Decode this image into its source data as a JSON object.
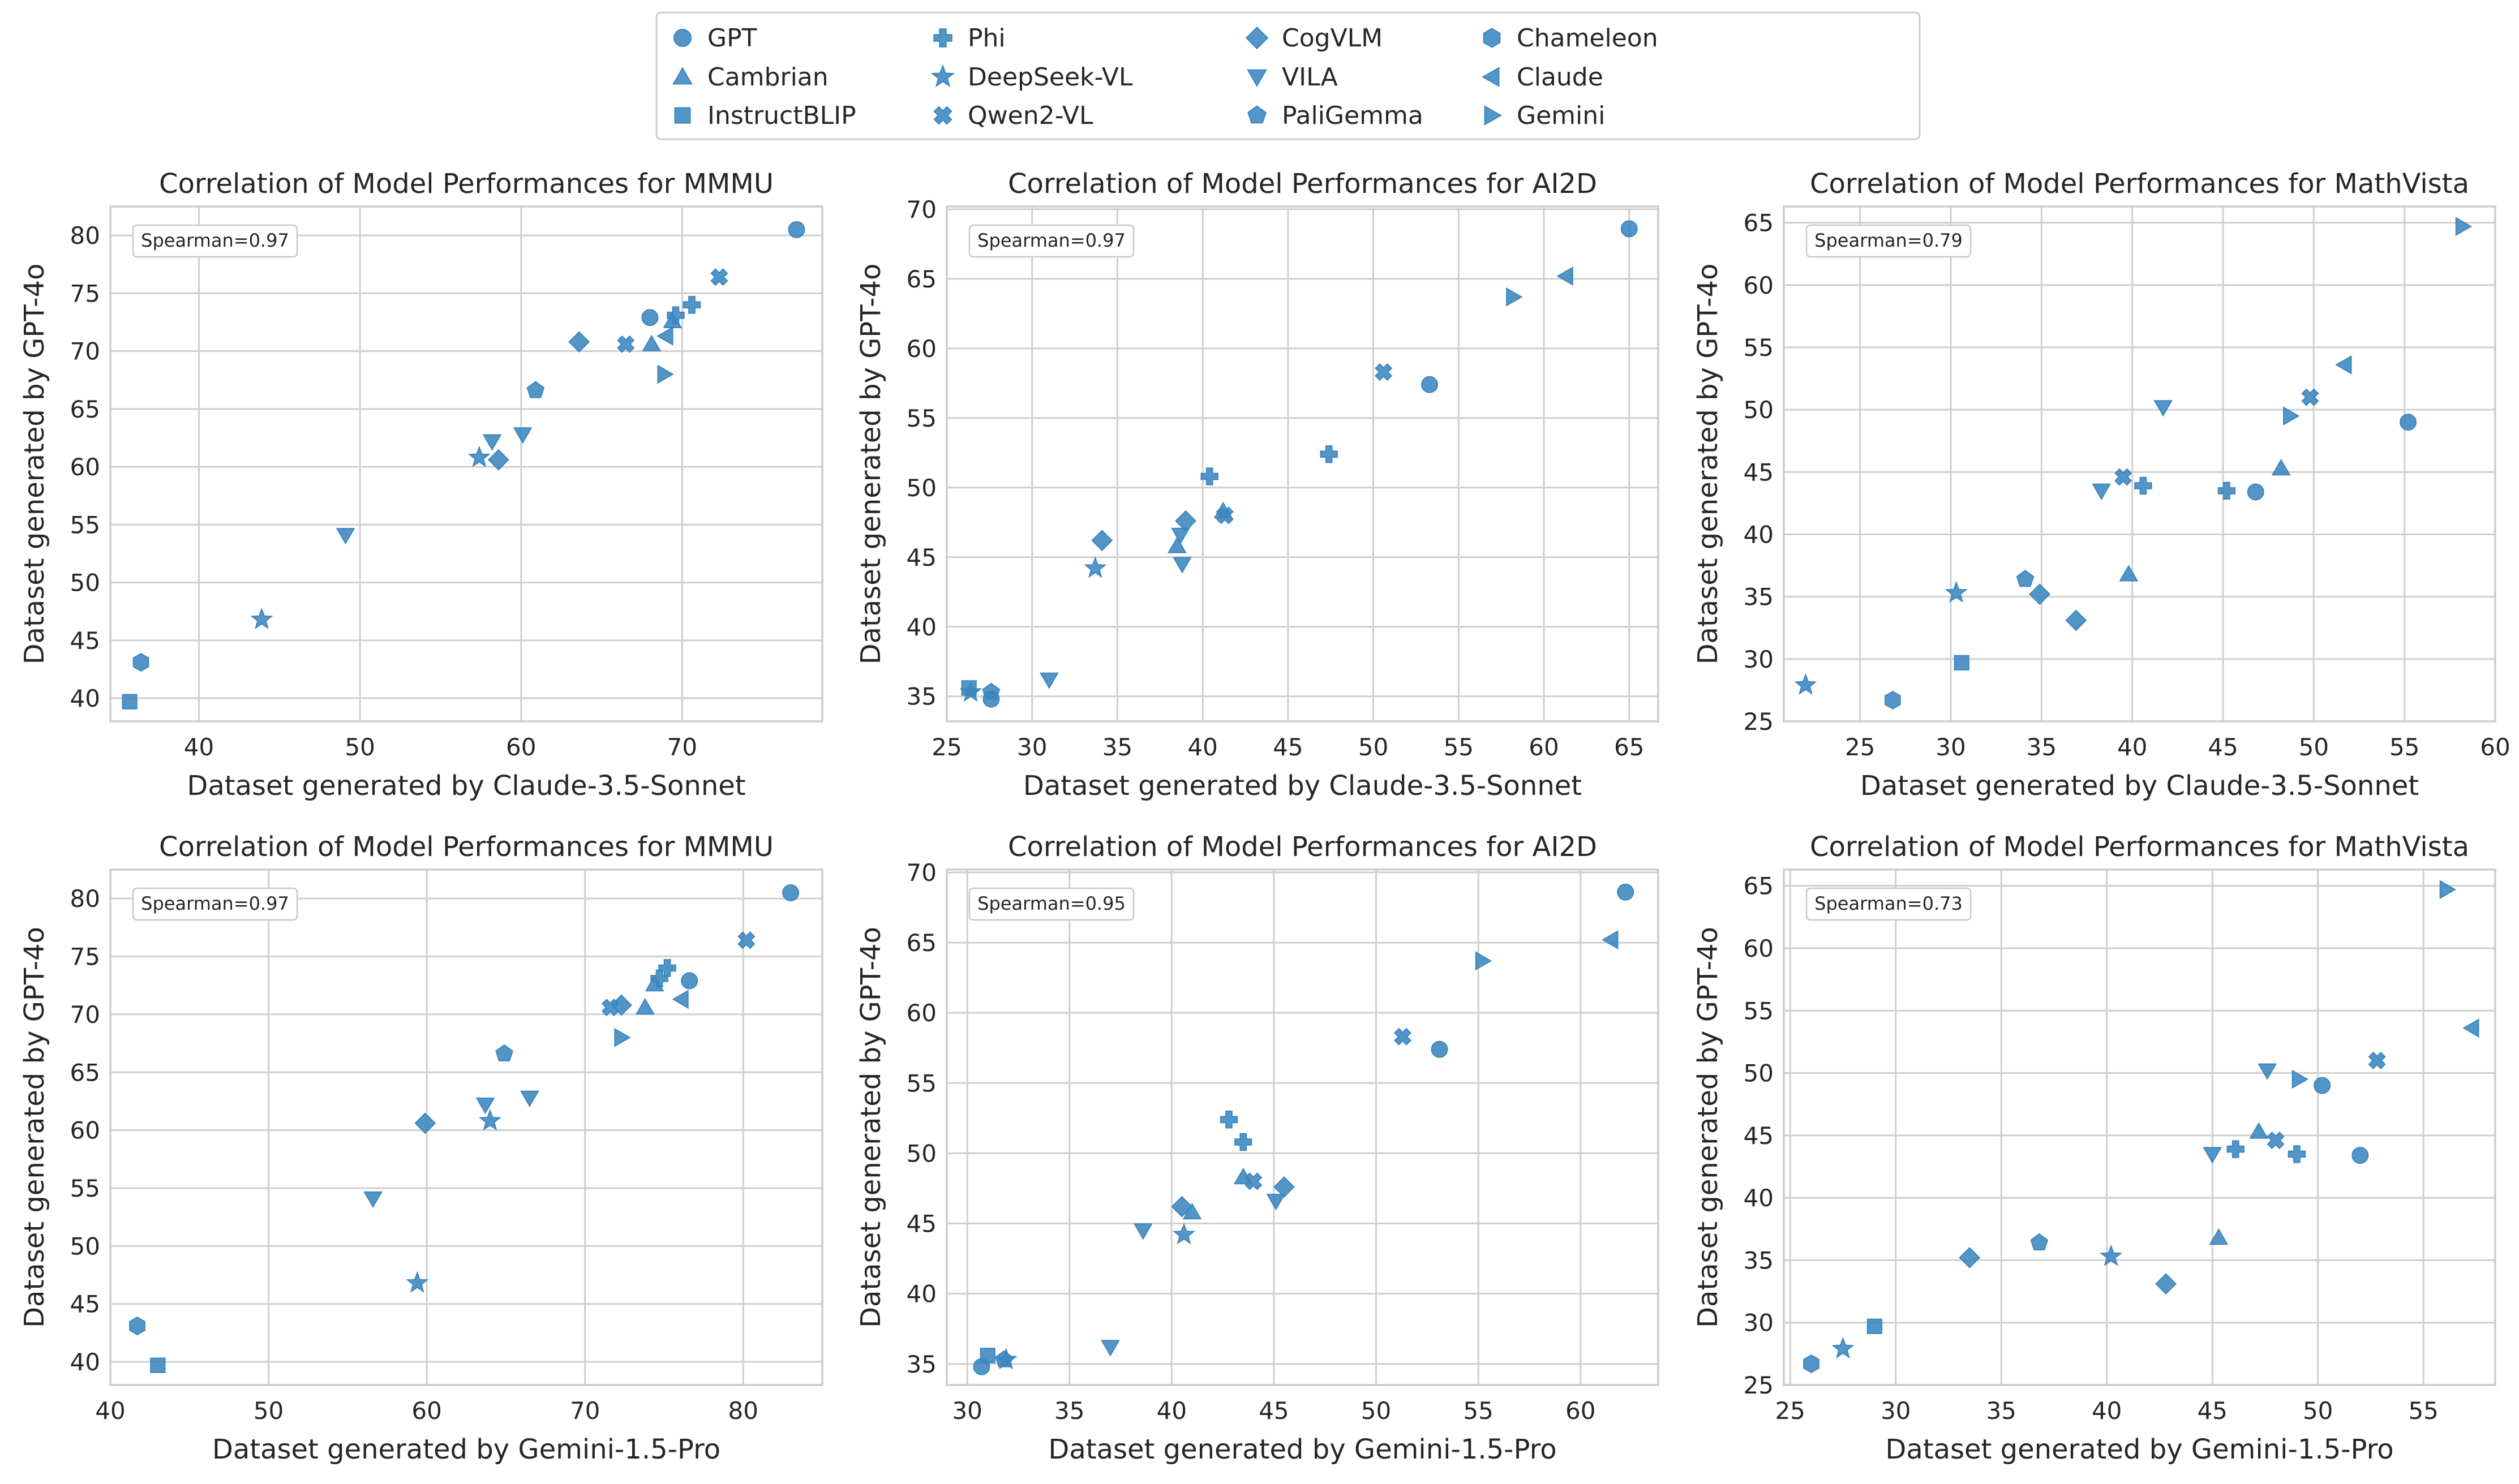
{
  "legend": {
    "items": [
      {
        "name": "GPT",
        "marker": "circle"
      },
      {
        "name": "Cambrian",
        "marker": "triangle-up"
      },
      {
        "name": "InstructBLIP",
        "marker": "square"
      },
      {
        "name": "Phi",
        "marker": "plus"
      },
      {
        "name": "DeepSeek-VL",
        "marker": "star"
      },
      {
        "name": "Qwen2-VL",
        "marker": "x"
      },
      {
        "name": "CogVLM",
        "marker": "diamond"
      },
      {
        "name": "VILA",
        "marker": "triangle-down"
      },
      {
        "name": "PaliGemma",
        "marker": "pentagon"
      },
      {
        "name": "Chameleon",
        "marker": "hexagon"
      },
      {
        "name": "Claude",
        "marker": "triangle-left"
      },
      {
        "name": "Gemini",
        "marker": "triangle-right"
      }
    ]
  },
  "colors": {
    "marker": "#3b86bf",
    "grid": "#cfcfcf",
    "axis": "#cccccc",
    "text": "#262626"
  },
  "chart_data": [
    {
      "type": "scatter",
      "title": "Correlation of Model Performances for MMMU",
      "xlabel": "Dataset generated by Claude-3.5-Sonnet",
      "ylabel": "Dataset generated by GPT-4o",
      "annotation": "Spearman=0.97",
      "xlim": [
        34.5,
        78.7
      ],
      "ylim": [
        38.0,
        82.5
      ],
      "xticks": [
        40,
        50,
        60,
        70
      ],
      "yticks": [
        40,
        45,
        50,
        55,
        60,
        65,
        70,
        75,
        80
      ],
      "points": [
        {
          "m": "circle",
          "x": 77.1,
          "y": 80.5
        },
        {
          "m": "circle",
          "x": 68.0,
          "y": 72.9
        },
        {
          "m": "triangle-up",
          "x": 68.1,
          "y": 70.6
        },
        {
          "m": "triangle-up",
          "x": 69.4,
          "y": 72.6
        },
        {
          "m": "square",
          "x": 35.7,
          "y": 39.7
        },
        {
          "m": "plus",
          "x": 70.6,
          "y": 74.0
        },
        {
          "m": "plus",
          "x": 69.6,
          "y": 73.1
        },
        {
          "m": "star",
          "x": 43.9,
          "y": 46.8
        },
        {
          "m": "star",
          "x": 57.4,
          "y": 60.8
        },
        {
          "m": "x",
          "x": 72.3,
          "y": 76.4
        },
        {
          "m": "x",
          "x": 66.5,
          "y": 70.6
        },
        {
          "m": "diamond",
          "x": 63.6,
          "y": 70.8
        },
        {
          "m": "diamond",
          "x": 58.6,
          "y": 60.6
        },
        {
          "m": "triangle-down",
          "x": 49.1,
          "y": 54.1
        },
        {
          "m": "triangle-down",
          "x": 60.1,
          "y": 62.8
        },
        {
          "m": "triangle-down",
          "x": 58.2,
          "y": 62.2
        },
        {
          "m": "pentagon",
          "x": 60.9,
          "y": 66.6
        },
        {
          "m": "hexagon",
          "x": 36.4,
          "y": 43.1
        },
        {
          "m": "triangle-left",
          "x": 69.0,
          "y": 71.3
        },
        {
          "m": "triangle-right",
          "x": 68.9,
          "y": 68.0
        }
      ]
    },
    {
      "type": "scatter",
      "title": "Correlation of Model Performances for AI2D",
      "xlabel": "Dataset generated by Claude-3.5-Sonnet",
      "ylabel": "Dataset generated by GPT-4o",
      "annotation": "Spearman=0.97",
      "xlim": [
        25.0,
        66.7
      ],
      "ylim": [
        33.2,
        70.2
      ],
      "xticks": [
        25,
        30,
        35,
        40,
        45,
        50,
        55,
        60,
        65
      ],
      "yticks": [
        35,
        40,
        45,
        50,
        55,
        60,
        65,
        70
      ],
      "points": [
        {
          "m": "circle",
          "x": 65.0,
          "y": 68.6
        },
        {
          "m": "circle",
          "x": 53.3,
          "y": 57.4
        },
        {
          "m": "circle",
          "x": 27.6,
          "y": 34.8
        },
        {
          "m": "triangle-up",
          "x": 38.5,
          "y": 45.8
        },
        {
          "m": "triangle-up",
          "x": 41.2,
          "y": 48.3
        },
        {
          "m": "square",
          "x": 26.3,
          "y": 35.6
        },
        {
          "m": "plus",
          "x": 47.4,
          "y": 52.4
        },
        {
          "m": "plus",
          "x": 40.4,
          "y": 50.8
        },
        {
          "m": "star",
          "x": 33.7,
          "y": 44.2
        },
        {
          "m": "star",
          "x": 26.4,
          "y": 35.3
        },
        {
          "m": "x",
          "x": 50.6,
          "y": 58.3
        },
        {
          "m": "x",
          "x": 41.3,
          "y": 48.0
        },
        {
          "m": "diamond",
          "x": 34.1,
          "y": 46.2
        },
        {
          "m": "diamond",
          "x": 39.0,
          "y": 47.6
        },
        {
          "m": "triangle-down",
          "x": 31.0,
          "y": 36.2
        },
        {
          "m": "triangle-down",
          "x": 38.7,
          "y": 46.6
        },
        {
          "m": "triangle-down",
          "x": 38.8,
          "y": 44.5
        },
        {
          "m": "pentagon",
          "x": 27.6,
          "y": 35.3
        },
        {
          "m": "triangle-left",
          "x": 61.3,
          "y": 65.2
        },
        {
          "m": "triangle-right",
          "x": 58.2,
          "y": 63.7
        }
      ]
    },
    {
      "type": "scatter",
      "title": "Correlation of Model Performances for MathVista",
      "xlabel": "Dataset generated by Claude-3.5-Sonnet",
      "ylabel": "Dataset generated by GPT-4o",
      "annotation": "Spearman=0.79",
      "xlim": [
        20.8,
        60.0
      ],
      "ylim": [
        25.0,
        66.3
      ],
      "xticks": [
        25,
        30,
        35,
        40,
        45,
        50,
        55,
        60
      ],
      "yticks": [
        25,
        30,
        35,
        40,
        45,
        50,
        55,
        60,
        65
      ],
      "points": [
        {
          "m": "circle",
          "x": 55.2,
          "y": 49.0
        },
        {
          "m": "circle",
          "x": 46.8,
          "y": 43.4
        },
        {
          "m": "triangle-up",
          "x": 48.2,
          "y": 45.3
        },
        {
          "m": "triangle-up",
          "x": 39.8,
          "y": 36.8
        },
        {
          "m": "square",
          "x": 30.6,
          "y": 29.7
        },
        {
          "m": "plus",
          "x": 45.2,
          "y": 43.5
        },
        {
          "m": "plus",
          "x": 40.6,
          "y": 43.9
        },
        {
          "m": "star",
          "x": 22.0,
          "y": 27.9
        },
        {
          "m": "star",
          "x": 30.3,
          "y": 35.3
        },
        {
          "m": "x",
          "x": 49.8,
          "y": 51.0
        },
        {
          "m": "x",
          "x": 39.5,
          "y": 44.6
        },
        {
          "m": "diamond",
          "x": 34.9,
          "y": 35.2
        },
        {
          "m": "diamond",
          "x": 36.9,
          "y": 33.1
        },
        {
          "m": "triangle-down",
          "x": 41.7,
          "y": 50.2
        },
        {
          "m": "triangle-down",
          "x": 38.3,
          "y": 43.5
        },
        {
          "m": "pentagon",
          "x": 34.1,
          "y": 36.4
        },
        {
          "m": "hexagon",
          "x": 26.8,
          "y": 26.7
        },
        {
          "m": "triangle-left",
          "x": 51.7,
          "y": 53.6
        },
        {
          "m": "triangle-right",
          "x": 58.2,
          "y": 64.7
        },
        {
          "m": "triangle-right",
          "x": 48.7,
          "y": 49.5
        }
      ]
    },
    {
      "type": "scatter",
      "title": "Correlation of Model Performances for MMMU",
      "xlabel": "Dataset generated by Gemini-1.5-Pro",
      "ylabel": "Dataset generated by GPT-4o",
      "annotation": "Spearman=0.97",
      "xlim": [
        40.0,
        85.0
      ],
      "ylim": [
        38.0,
        82.5
      ],
      "xticks": [
        40,
        50,
        60,
        70,
        80
      ],
      "yticks": [
        40,
        45,
        50,
        55,
        60,
        65,
        70,
        75,
        80
      ],
      "points": [
        {
          "m": "circle",
          "x": 83.0,
          "y": 80.5
        },
        {
          "m": "circle",
          "x": 76.6,
          "y": 72.9
        },
        {
          "m": "triangle-up",
          "x": 73.8,
          "y": 70.6
        },
        {
          "m": "triangle-up",
          "x": 74.4,
          "y": 72.6
        },
        {
          "m": "square",
          "x": 43.0,
          "y": 39.7
        },
        {
          "m": "plus",
          "x": 75.2,
          "y": 74.0
        },
        {
          "m": "plus",
          "x": 74.7,
          "y": 73.1
        },
        {
          "m": "star",
          "x": 59.4,
          "y": 46.8
        },
        {
          "m": "star",
          "x": 64.0,
          "y": 60.8
        },
        {
          "m": "x",
          "x": 80.2,
          "y": 76.4
        },
        {
          "m": "x",
          "x": 71.6,
          "y": 70.6
        },
        {
          "m": "diamond",
          "x": 72.3,
          "y": 70.8
        },
        {
          "m": "diamond",
          "x": 59.9,
          "y": 60.6
        },
        {
          "m": "triangle-down",
          "x": 56.6,
          "y": 54.1
        },
        {
          "m": "triangle-down",
          "x": 66.5,
          "y": 62.8
        },
        {
          "m": "triangle-down",
          "x": 63.7,
          "y": 62.2
        },
        {
          "m": "pentagon",
          "x": 64.9,
          "y": 66.6
        },
        {
          "m": "hexagon",
          "x": 41.7,
          "y": 43.1
        },
        {
          "m": "triangle-left",
          "x": 76.1,
          "y": 71.3
        },
        {
          "m": "triangle-right",
          "x": 72.3,
          "y": 68.0
        }
      ]
    },
    {
      "type": "scatter",
      "title": "Correlation of Model Performances for AI2D",
      "xlabel": "Dataset generated by Gemini-1.5-Pro",
      "ylabel": "Dataset generated by GPT-4o",
      "annotation": "Spearman=0.95",
      "xlim": [
        29.0,
        63.8
      ],
      "ylim": [
        33.5,
        70.2
      ],
      "xticks": [
        30,
        35,
        40,
        45,
        50,
        55,
        60
      ],
      "yticks": [
        35,
        40,
        45,
        50,
        55,
        60,
        65,
        70
      ],
      "points": [
        {
          "m": "circle",
          "x": 62.2,
          "y": 68.6
        },
        {
          "m": "circle",
          "x": 53.1,
          "y": 57.4
        },
        {
          "m": "circle",
          "x": 30.7,
          "y": 34.8
        },
        {
          "m": "triangle-up",
          "x": 41.0,
          "y": 45.8
        },
        {
          "m": "triangle-up",
          "x": 43.5,
          "y": 48.3
        },
        {
          "m": "square",
          "x": 31.0,
          "y": 35.6
        },
        {
          "m": "plus",
          "x": 42.8,
          "y": 52.4
        },
        {
          "m": "plus",
          "x": 43.5,
          "y": 50.8
        },
        {
          "m": "star",
          "x": 40.6,
          "y": 44.2
        },
        {
          "m": "star",
          "x": 31.9,
          "y": 35.3
        },
        {
          "m": "x",
          "x": 51.3,
          "y": 58.3
        },
        {
          "m": "x",
          "x": 44.0,
          "y": 48.0
        },
        {
          "m": "diamond",
          "x": 40.5,
          "y": 46.2
        },
        {
          "m": "diamond",
          "x": 45.5,
          "y": 47.6
        },
        {
          "m": "triangle-down",
          "x": 37.0,
          "y": 36.2
        },
        {
          "m": "triangle-down",
          "x": 45.1,
          "y": 46.6
        },
        {
          "m": "triangle-down",
          "x": 38.6,
          "y": 44.5
        },
        {
          "m": "pentagon",
          "x": 31.8,
          "y": 35.3
        },
        {
          "m": "triangle-left",
          "x": 61.5,
          "y": 65.2
        },
        {
          "m": "triangle-right",
          "x": 55.2,
          "y": 63.7
        }
      ]
    },
    {
      "type": "scatter",
      "title": "Correlation of Model Performances for MathVista",
      "xlabel": "Dataset generated by Gemini-1.5-Pro",
      "ylabel": "Dataset generated by GPT-4o",
      "annotation": "Spearman=0.73",
      "xlim": [
        24.7,
        58.4
      ],
      "ylim": [
        25.0,
        66.3
      ],
      "xticks": [
        25,
        30,
        35,
        40,
        45,
        50,
        55
      ],
      "yticks": [
        25,
        30,
        35,
        40,
        45,
        50,
        55,
        60,
        65
      ],
      "points": [
        {
          "m": "circle",
          "x": 50.2,
          "y": 49.0
        },
        {
          "m": "circle",
          "x": 52.0,
          "y": 43.4
        },
        {
          "m": "triangle-up",
          "x": 47.2,
          "y": 45.3
        },
        {
          "m": "triangle-up",
          "x": 45.3,
          "y": 36.8
        },
        {
          "m": "square",
          "x": 29.0,
          "y": 29.7
        },
        {
          "m": "plus",
          "x": 49.0,
          "y": 43.5
        },
        {
          "m": "plus",
          "x": 46.1,
          "y": 43.9
        },
        {
          "m": "star",
          "x": 27.5,
          "y": 27.9
        },
        {
          "m": "star",
          "x": 40.2,
          "y": 35.3
        },
        {
          "m": "x",
          "x": 52.8,
          "y": 51.0
        },
        {
          "m": "x",
          "x": 48.0,
          "y": 44.6
        },
        {
          "m": "diamond",
          "x": 33.5,
          "y": 35.2
        },
        {
          "m": "diamond",
          "x": 42.8,
          "y": 33.1
        },
        {
          "m": "triangle-down",
          "x": 47.6,
          "y": 50.2
        },
        {
          "m": "triangle-down",
          "x": 45.0,
          "y": 43.5
        },
        {
          "m": "pentagon",
          "x": 36.8,
          "y": 36.4
        },
        {
          "m": "hexagon",
          "x": 26.0,
          "y": 26.7
        },
        {
          "m": "triangle-left",
          "x": 57.3,
          "y": 53.6
        },
        {
          "m": "triangle-right",
          "x": 56.1,
          "y": 64.7
        },
        {
          "m": "triangle-right",
          "x": 49.1,
          "y": 49.5
        }
      ]
    }
  ]
}
